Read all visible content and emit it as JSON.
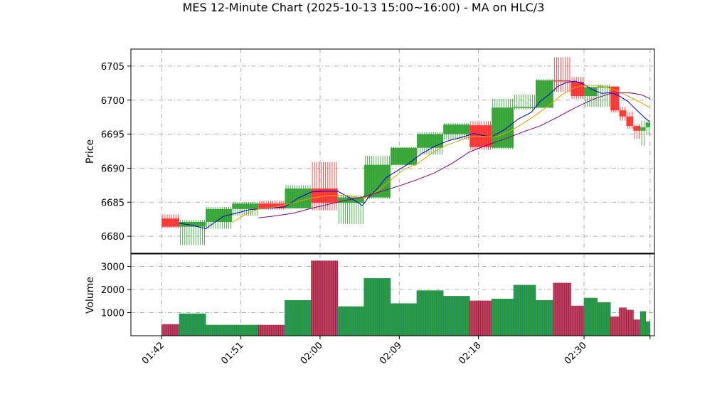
{
  "chart_data": {
    "type": "candlestick",
    "title": "MES 12-Minute Chart (2025-10-13 15:00~16:00) - MA on HLC/3",
    "x_tick_labels": [
      "01:42",
      "01:51",
      "02:00",
      "02:09",
      "02:18",
      "02:30"
    ],
    "x_tick_minutes": [
      102,
      111,
      120,
      129,
      138,
      150
    ],
    "x_range_minutes": [
      98.5,
      158.0
    ],
    "price_axis": {
      "ylabel": "Price",
      "ylim": [
        6677.5,
        6707.5
      ],
      "ticks": [
        6680,
        6685,
        6690,
        6695,
        6700,
        6705
      ]
    },
    "volume_axis": {
      "ylabel": "Volume",
      "ylim": [
        0,
        3540
      ],
      "ticks": [
        1000,
        2000,
        3000
      ]
    },
    "grid": true,
    "colors": {
      "up": "#2ca02c",
      "down": "#ff2b2b",
      "ma_fast": "#0000cd",
      "ma_mid": "#e6a100",
      "ma_slow": "#800080",
      "vol_up_edge": "#1f77b4",
      "vol_down_edge": "#8b1a1a",
      "grid": "#b0b0b0"
    },
    "candles": [
      {
        "t0": 102.0,
        "t1": 104.0,
        "open": 6682.6,
        "high": 6683.2,
        "low": 6681.2,
        "close": 6681.4,
        "volume": 500
      },
      {
        "t0": 104.0,
        "t1": 107.0,
        "open": 6681.4,
        "high": 6682.4,
        "low": 6678.7,
        "close": 6682.1,
        "volume": 960
      },
      {
        "t0": 107.0,
        "t1": 110.0,
        "open": 6682.1,
        "high": 6684.3,
        "low": 6681.1,
        "close": 6684.0,
        "volume": 470
      },
      {
        "t0": 110.0,
        "t1": 113.0,
        "open": 6684.0,
        "high": 6685.0,
        "low": 6683.0,
        "close": 6684.8,
        "volume": 470
      },
      {
        "t0": 113.0,
        "t1": 116.0,
        "open": 6684.8,
        "high": 6685.2,
        "low": 6683.9,
        "close": 6684.1,
        "volume": 470
      },
      {
        "t0": 116.0,
        "t1": 119.0,
        "open": 6684.1,
        "high": 6687.5,
        "low": 6684.1,
        "close": 6687.0,
        "volume": 1540
      },
      {
        "t0": 119.0,
        "t1": 122.0,
        "open": 6687.0,
        "high": 6690.9,
        "low": 6683.8,
        "close": 6684.9,
        "volume": 3250
      },
      {
        "t0": 122.0,
        "t1": 125.0,
        "open": 6684.9,
        "high": 6686.0,
        "low": 6681.8,
        "close": 6685.7,
        "volume": 1270
      },
      {
        "t0": 125.0,
        "t1": 128.0,
        "open": 6685.7,
        "high": 6691.8,
        "low": 6685.5,
        "close": 6690.5,
        "volume": 2490
      },
      {
        "t0": 128.0,
        "t1": 131.0,
        "open": 6690.5,
        "high": 6693.1,
        "low": 6690.4,
        "close": 6693.0,
        "volume": 1400
      },
      {
        "t0": 131.0,
        "t1": 134.0,
        "open": 6693.0,
        "high": 6695.3,
        "low": 6692.0,
        "close": 6695.0,
        "volume": 1960
      },
      {
        "t0": 134.0,
        "t1": 137.0,
        "open": 6695.0,
        "high": 6696.6,
        "low": 6694.2,
        "close": 6696.4,
        "volume": 1720
      },
      {
        "t0": 137.0,
        "t1": 139.5,
        "open": 6696.3,
        "high": 6696.9,
        "low": 6692.7,
        "close": 6693.1,
        "volume": 1520
      },
      {
        "t0": 139.5,
        "t1": 142.0,
        "open": 6693.0,
        "high": 6700.2,
        "low": 6692.8,
        "close": 6698.9,
        "volume": 1600
      },
      {
        "t0": 142.0,
        "t1": 144.5,
        "open": 6698.9,
        "high": 6700.8,
        "low": 6698.6,
        "close": 6699.0,
        "volume": 2200
      },
      {
        "t0": 144.5,
        "t1": 146.5,
        "open": 6698.9,
        "high": 6703.1,
        "low": 6698.8,
        "close": 6702.9,
        "volume": 1540
      },
      {
        "t0": 146.5,
        "t1": 148.5,
        "open": 6702.9,
        "high": 6706.3,
        "low": 6701.2,
        "close": 6702.8,
        "volume": 2290
      },
      {
        "t0": 148.5,
        "t1": 150.0,
        "open": 6702.7,
        "high": 6703.4,
        "low": 6700.2,
        "close": 6700.6,
        "volume": 1300
      },
      {
        "t0": 150.0,
        "t1": 151.5,
        "open": 6700.6,
        "high": 6702.0,
        "low": 6699.0,
        "close": 6701.9,
        "volume": 1640
      },
      {
        "t0": 151.5,
        "t1": 153.0,
        "open": 6701.9,
        "high": 6702.3,
        "low": 6699.0,
        "close": 6702.0,
        "volume": 1450
      },
      {
        "t0": 153.0,
        "t1": 154.0,
        "open": 6702.0,
        "high": 6702.0,
        "low": 6698.2,
        "close": 6698.5,
        "volume": 830
      },
      {
        "t0": 154.0,
        "t1": 154.8,
        "open": 6698.5,
        "high": 6699.0,
        "low": 6697.0,
        "close": 6697.6,
        "volume": 1220
      },
      {
        "t0": 154.8,
        "t1": 155.6,
        "open": 6697.6,
        "high": 6698.3,
        "low": 6695.8,
        "close": 6696.2,
        "volume": 1120
      },
      {
        "t0": 155.6,
        "t1": 156.4,
        "open": 6696.2,
        "high": 6696.5,
        "low": 6694.3,
        "close": 6695.5,
        "volume": 700
      },
      {
        "t0": 156.4,
        "t1": 157.0,
        "open": 6695.5,
        "high": 6697.0,
        "low": 6693.3,
        "close": 6696.0,
        "volume": 1060
      },
      {
        "t0": 157.0,
        "t1": 157.5,
        "open": 6696.0,
        "high": 6697.0,
        "low": 6694.8,
        "close": 6696.7,
        "volume": 620
      }
    ],
    "moving_averages": [
      {
        "color_key": "ma_fast",
        "points": [
          [
            104.0,
            6681.9
          ],
          [
            105.5,
            6681.6
          ],
          [
            107.0,
            6681.1
          ],
          [
            108.0,
            6682.0
          ],
          [
            109.0,
            6682.9
          ],
          [
            110.5,
            6683.4
          ],
          [
            112.0,
            6683.9
          ],
          [
            114.0,
            6684.1
          ],
          [
            116.0,
            6684.3
          ],
          [
            117.5,
            6685.6
          ],
          [
            119.0,
            6686.5
          ],
          [
            120.5,
            6686.6
          ],
          [
            122.0,
            6686.6
          ],
          [
            123.0,
            6685.9
          ],
          [
            124.0,
            6685.2
          ],
          [
            124.8,
            6684.5
          ],
          [
            125.5,
            6685.7
          ],
          [
            126.5,
            6687.0
          ],
          [
            127.5,
            6688.6
          ],
          [
            128.5,
            6689.4
          ],
          [
            130.0,
            6690.6
          ],
          [
            131.5,
            6692.1
          ],
          [
            133.0,
            6693.2
          ],
          [
            134.5,
            6694.0
          ],
          [
            136.0,
            6694.5
          ],
          [
            137.5,
            6695.1
          ],
          [
            138.5,
            6694.8
          ],
          [
            139.5,
            6694.6
          ],
          [
            141.0,
            6695.7
          ],
          [
            142.5,
            6697.2
          ],
          [
            144.0,
            6698.2
          ],
          [
            145.0,
            6699.8
          ],
          [
            146.0,
            6700.8
          ],
          [
            147.0,
            6702.0
          ],
          [
            148.0,
            6702.6
          ],
          [
            149.0,
            6702.8
          ],
          [
            150.0,
            6702.3
          ],
          [
            151.0,
            6701.5
          ],
          [
            152.0,
            6701.0
          ],
          [
            153.0,
            6701.1
          ],
          [
            154.0,
            6700.6
          ],
          [
            155.0,
            6699.8
          ],
          [
            156.0,
            6698.5
          ],
          [
            157.0,
            6697.3
          ],
          [
            157.5,
            6696.8
          ]
        ]
      },
      {
        "color_key": "ma_mid",
        "points": [
          [
            110.0,
            6682.0
          ],
          [
            111.5,
            6683.2
          ],
          [
            113.0,
            6684.0
          ],
          [
            115.0,
            6684.3
          ],
          [
            117.0,
            6684.9
          ],
          [
            119.0,
            6685.6
          ],
          [
            121.0,
            6686.0
          ],
          [
            123.0,
            6686.0
          ],
          [
            125.0,
            6685.6
          ],
          [
            126.5,
            6686.6
          ],
          [
            128.0,
            6688.2
          ],
          [
            129.5,
            6689.8
          ],
          [
            131.0,
            6690.6
          ],
          [
            132.5,
            6692.0
          ],
          [
            134.0,
            6693.2
          ],
          [
            135.5,
            6693.9
          ],
          [
            137.0,
            6694.6
          ],
          [
            138.5,
            6694.7
          ],
          [
            140.0,
            6694.6
          ],
          [
            141.5,
            6695.4
          ],
          [
            143.0,
            6696.5
          ],
          [
            144.5,
            6697.8
          ],
          [
            146.0,
            6699.2
          ],
          [
            147.5,
            6700.8
          ],
          [
            149.0,
            6701.9
          ],
          [
            150.5,
            6702.2
          ],
          [
            152.0,
            6702.1
          ],
          [
            153.5,
            6701.5
          ],
          [
            155.0,
            6700.6
          ],
          [
            156.5,
            6699.6
          ],
          [
            157.5,
            6698.9
          ]
        ]
      },
      {
        "color_key": "ma_slow",
        "points": [
          [
            113.0,
            6682.7
          ],
          [
            115.0,
            6683.0
          ],
          [
            117.0,
            6683.4
          ],
          [
            119.0,
            6684.1
          ],
          [
            121.0,
            6684.7
          ],
          [
            123.0,
            6685.3
          ],
          [
            125.0,
            6685.8
          ],
          [
            127.0,
            6686.6
          ],
          [
            129.0,
            6687.4
          ],
          [
            131.0,
            6688.3
          ],
          [
            133.0,
            6689.3
          ],
          [
            135.0,
            6690.7
          ],
          [
            137.0,
            6692.4
          ],
          [
            139.0,
            6693.4
          ],
          [
            141.0,
            6694.3
          ],
          [
            143.0,
            6695.3
          ],
          [
            145.0,
            6696.2
          ],
          [
            147.0,
            6697.5
          ],
          [
            149.0,
            6698.9
          ],
          [
            151.0,
            6700.1
          ],
          [
            153.0,
            6701.0
          ],
          [
            155.0,
            6701.1
          ],
          [
            156.5,
            6700.8
          ],
          [
            157.5,
            6700.2
          ]
        ]
      }
    ]
  }
}
